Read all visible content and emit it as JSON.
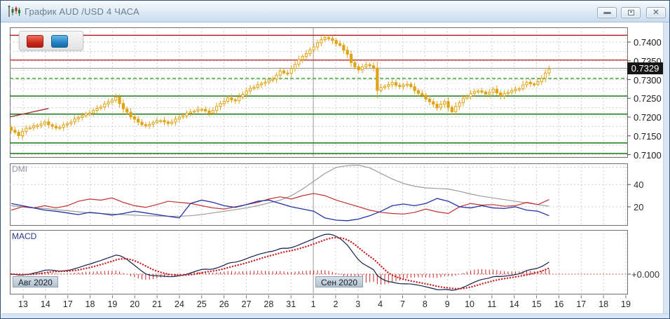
{
  "window": {
    "title": "График AUD /USD 4 ЧАСА",
    "buttons": {
      "minimize": "Свернуть",
      "restore": "Восстановить",
      "close": "Закрыть"
    }
  },
  "chart_toolbar": {
    "sell_button_color": "#c8261a",
    "buy_button_color": "#1f7fc2"
  },
  "price_axis": {
    "ticks": [
      "0.7400",
      "0.7350",
      "0.7300",
      "0.7250",
      "0.7200",
      "0.7150",
      "0.7100"
    ],
    "tick_values": [
      0.74,
      0.735,
      0.73,
      0.725,
      0.72,
      0.715,
      0.71
    ],
    "current_price": "0.7329"
  },
  "indicators": {
    "dmi": {
      "label": "DMI",
      "ticks": [
        "40",
        "20"
      ],
      "tick_values": [
        40,
        20
      ]
    },
    "macd": {
      "label": "MACD",
      "zero_label": "+0.000"
    }
  },
  "x_axis": {
    "labels": [
      "13",
      "14",
      "17",
      "18",
      "19",
      "20",
      "21",
      "24",
      "25",
      "26",
      "27",
      "28",
      "31",
      "1",
      "2",
      "3",
      "4",
      "7",
      "8",
      "9",
      "10",
      "11",
      "14",
      "15",
      "16",
      "17",
      "18",
      "19"
    ],
    "month_markers": [
      {
        "label": "Авг 2020",
        "tick_index": 0
      },
      {
        "label": "Сен 2020",
        "tick_index": 13
      }
    ]
  },
  "chart_data": {
    "type": "candlestick",
    "instrument": "AUD/USD",
    "timeframe": "4 часа",
    "bars": 145,
    "price_grid": {
      "min": 0.71,
      "max": 0.74,
      "step": 0.0025
    },
    "current_price": 0.7329,
    "close_keyframes": [
      [
        0,
        0.7165
      ],
      [
        2,
        0.7152
      ],
      [
        4,
        0.717
      ],
      [
        7,
        0.7178
      ],
      [
        9,
        0.7186
      ],
      [
        12,
        0.717
      ],
      [
        15,
        0.7182
      ],
      [
        18,
        0.72
      ],
      [
        21,
        0.7212
      ],
      [
        24,
        0.7228
      ],
      [
        27,
        0.7246
      ],
      [
        28,
        0.7252
      ],
      [
        30,
        0.7222
      ],
      [
        32,
        0.7202
      ],
      [
        34,
        0.7186
      ],
      [
        36,
        0.7176
      ],
      [
        38,
        0.7186
      ],
      [
        40,
        0.7192
      ],
      [
        42,
        0.7182
      ],
      [
        45,
        0.72
      ],
      [
        48,
        0.7214
      ],
      [
        51,
        0.7222
      ],
      [
        53,
        0.721
      ],
      [
        56,
        0.7236
      ],
      [
        58,
        0.725
      ],
      [
        60,
        0.7244
      ],
      [
        62,
        0.7262
      ],
      [
        64,
        0.7276
      ],
      [
        67,
        0.729
      ],
      [
        70,
        0.7302
      ],
      [
        72,
        0.7322
      ],
      [
        74,
        0.7316
      ],
      [
        76,
        0.7342
      ],
      [
        78,
        0.7362
      ],
      [
        80,
        0.7378
      ],
      [
        82,
        0.7398
      ],
      [
        84,
        0.7413
      ],
      [
        86,
        0.7404
      ],
      [
        88,
        0.739
      ],
      [
        90,
        0.7368
      ],
      [
        91,
        0.7344
      ],
      [
        93,
        0.7326
      ],
      [
        95,
        0.7341
      ],
      [
        97,
        0.7331
      ],
      [
        98,
        0.7272
      ],
      [
        100,
        0.7283
      ],
      [
        102,
        0.7291
      ],
      [
        104,
        0.7281
      ],
      [
        106,
        0.7289
      ],
      [
        108,
        0.7271
      ],
      [
        110,
        0.7257
      ],
      [
        112,
        0.7241
      ],
      [
        114,
        0.7226
      ],
      [
        116,
        0.7241
      ],
      [
        118,
        0.7213
      ],
      [
        119,
        0.7229
      ],
      [
        121,
        0.7249
      ],
      [
        123,
        0.7263
      ],
      [
        125,
        0.7271
      ],
      [
        127,
        0.7261
      ],
      [
        129,
        0.7273
      ],
      [
        131,
        0.7257
      ],
      [
        133,
        0.7267
      ],
      [
        136,
        0.7277
      ],
      [
        138,
        0.7293
      ],
      [
        140,
        0.7286
      ],
      [
        142,
        0.7304
      ],
      [
        144,
        0.7329
      ]
    ],
    "levels": [
      {
        "price": 0.7418,
        "color": "#b42222",
        "style": "solid"
      },
      {
        "price": 0.7352,
        "color": "#c43c3c",
        "style": "solid"
      },
      {
        "price": 0.733,
        "color": "#9a9a9a",
        "style": "solid"
      },
      {
        "price": 0.7303,
        "color": "#3faa3f",
        "style": "dashed"
      },
      {
        "price": 0.7256,
        "color": "#157a15",
        "style": "solid"
      },
      {
        "price": 0.7208,
        "color": "#157a15",
        "style": "solid"
      },
      {
        "price": 0.7131,
        "color": "#157a15",
        "style": "solid"
      },
      {
        "price": 0.7103,
        "color": "#157a15",
        "style": "solid"
      }
    ],
    "trendline": {
      "from_bar": 0,
      "from_price": 0.72,
      "to_bar": 10,
      "to_price": 0.7223,
      "color": "#a03030"
    },
    "dmi": {
      "sample_step_bars": 3,
      "colors": {
        "adx": "#9c9c9c",
        "plus_di": "#c03030",
        "minus_di": "#2233a6"
      },
      "adx": [
        21,
        20,
        19,
        18.5,
        17.5,
        16.5,
        15.5,
        14.5,
        14,
        13.5,
        13,
        12.5,
        12,
        11.8,
        11.5,
        11.5,
        12,
        13,
        14.5,
        16,
        17.5,
        19,
        21,
        23.5,
        26,
        30,
        36,
        43,
        50,
        55.5,
        57,
        57.5,
        55,
        50,
        45,
        41,
        38.5,
        37,
        36.5,
        36,
        34,
        31.5,
        29.5,
        28,
        26.5,
        25,
        23.5,
        22,
        20.5
      ],
      "plus_di": [
        17,
        20,
        19,
        21,
        19,
        21,
        25,
        27,
        26,
        28,
        24,
        21,
        19.5,
        22,
        25,
        24,
        23,
        21,
        19,
        18,
        20,
        22,
        24,
        27,
        29,
        27,
        30,
        32,
        30,
        26,
        23,
        20,
        17,
        15,
        14,
        13.5,
        15,
        18,
        15.5,
        14,
        20,
        23,
        21.5,
        22,
        20.5,
        21,
        24,
        22,
        26.5
      ],
      "minus_di": [
        23,
        21,
        19,
        17,
        16,
        14.5,
        13,
        15,
        14,
        12.5,
        14,
        16,
        14.5,
        13,
        11.5,
        10,
        23,
        26,
        24,
        21,
        19.5,
        22,
        25,
        26,
        23,
        20,
        18,
        16,
        10,
        8,
        7.5,
        9,
        12,
        16,
        21,
        22.5,
        21,
        23,
        27.5,
        25,
        20,
        19,
        21,
        19,
        18.5,
        20,
        17,
        16,
        12
      ]
    },
    "macd": {
      "fast": 12,
      "slow": 26,
      "signal": 9,
      "peak_estimate": 0.003,
      "trough_estimate": -0.0012,
      "colors": {
        "line": "#14204e",
        "signal": "#c62828",
        "histogram": "#c62828",
        "zero": "#cc5555"
      }
    },
    "candle_color": "#e0a316",
    "grid_color": "#cdcdcd",
    "separator_color": "#9a9a9a"
  }
}
